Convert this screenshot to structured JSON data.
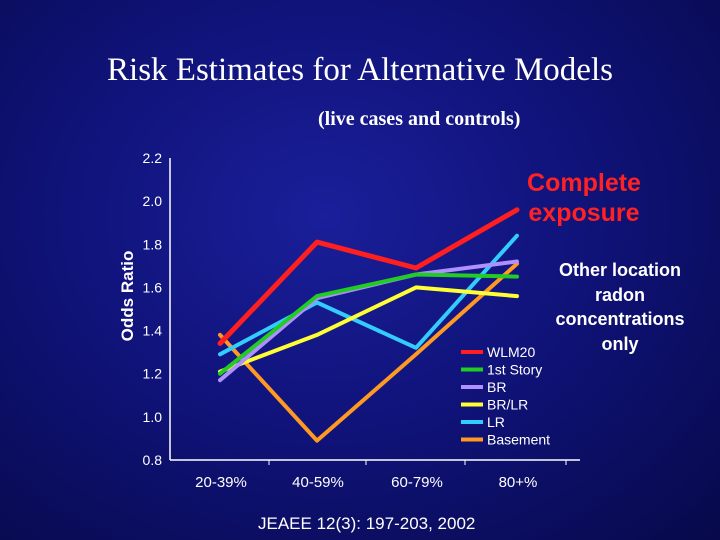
{
  "slide": {
    "title": "Risk Estimates for Alternative Models",
    "subtitle": "(live cases and controls)",
    "annotation_complete": "Complete exposure",
    "annotation_other": "Other location radon concentrations only",
    "source": "JEAEE 12(3): 197-203, 2002"
  },
  "chart_data": {
    "type": "line",
    "title": "Risk Estimates for Alternative Models",
    "subtitle": "(live cases and controls)",
    "xlabel": "",
    "ylabel": "Odds Ratio",
    "categories": [
      "20-39%",
      "40-59%",
      "60-79%",
      "80+%"
    ],
    "ylim": [
      0.8,
      2.2
    ],
    "yticks": [
      "0.8",
      "1.0",
      "1.2",
      "1.4",
      "1.6",
      "1.8",
      "2.0",
      "2.2"
    ],
    "grid": false,
    "legend_position": "bottom-right",
    "series": [
      {
        "name": "WLM20",
        "color": "#ff1f1f",
        "values": [
          1.34,
          1.81,
          1.69,
          1.96
        ]
      },
      {
        "name": "1st Story",
        "color": "#22cc22",
        "values": [
          1.2,
          1.56,
          1.66,
          1.65
        ]
      },
      {
        "name": "BR",
        "color": "#b090ff",
        "values": [
          1.17,
          1.55,
          1.66,
          1.72
        ]
      },
      {
        "name": "BR/LR",
        "color": "#ffff33",
        "values": [
          1.21,
          1.38,
          1.6,
          1.56
        ]
      },
      {
        "name": "LR",
        "color": "#33ccff",
        "values": [
          1.29,
          1.53,
          1.32,
          1.84
        ]
      },
      {
        "name": "Basement",
        "color": "#ff9922",
        "values": [
          1.38,
          0.89,
          1.29,
          1.71
        ]
      }
    ]
  }
}
